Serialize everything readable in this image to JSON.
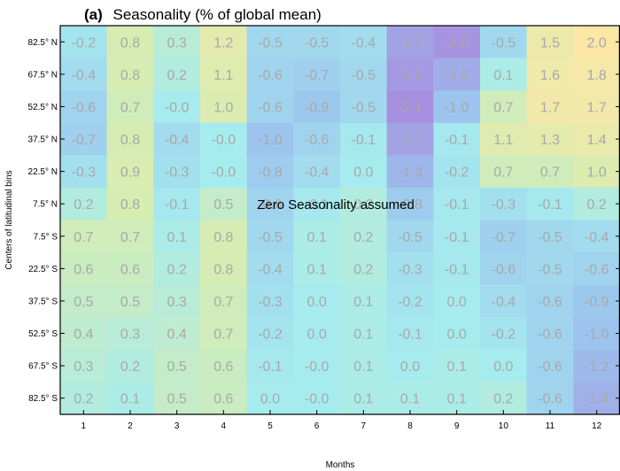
{
  "chart_data": {
    "type": "heatmap",
    "title_tag": "(a)",
    "title": "Seasonality (% of global mean)",
    "xlabel": "Months",
    "ylabel": "Centers of latitudinal bins",
    "annotation": "Zero Seasonality assumed",
    "x": [
      "1",
      "2",
      "3",
      "4",
      "5",
      "6",
      "7",
      "8",
      "9",
      "10",
      "11",
      "12"
    ],
    "y": [
      "82.5° N",
      "67.5° N",
      "52.5° N",
      "37.5° N",
      "22.5° N",
      "7.5° N",
      "7.5° S",
      "22.5° S",
      "37.5° S",
      "52.5° S",
      "67.5° S",
      "82.5° S"
    ],
    "values": [
      [
        -0.2,
        0.8,
        0.3,
        1.2,
        -0.5,
        -0.5,
        -0.4,
        -1.7,
        -2.0,
        -0.5,
        1.5,
        2.0
      ],
      [
        -0.4,
        0.8,
        0.2,
        1.1,
        -0.6,
        -0.7,
        -0.5,
        -1.9,
        -1.5,
        0.1,
        1.6,
        1.8
      ],
      [
        -0.6,
        0.7,
        -0.0,
        1.0,
        -0.6,
        -0.9,
        -0.5,
        -2.1,
        -1.0,
        0.7,
        1.7,
        1.7
      ],
      [
        -0.7,
        0.8,
        -0.4,
        -0.0,
        -1.0,
        -0.6,
        -0.1,
        -1.7,
        -0.1,
        1.1,
        1.3,
        1.4
      ],
      [
        -0.3,
        0.9,
        -0.3,
        -0.0,
        -0.8,
        -0.4,
        0.0,
        -1.3,
        -0.2,
        0.7,
        0.7,
        1.0
      ],
      [
        0.2,
        0.8,
        -0.1,
        0.5,
        -0.6,
        -0.1,
        0.2,
        -0.8,
        -0.1,
        -0.3,
        -0.1,
        0.2
      ],
      [
        0.7,
        0.7,
        0.1,
        0.8,
        -0.5,
        0.1,
        0.2,
        -0.5,
        -0.1,
        -0.7,
        -0.5,
        -0.4
      ],
      [
        0.6,
        0.6,
        0.2,
        0.8,
        -0.4,
        0.1,
        0.2,
        -0.3,
        -0.1,
        -0.6,
        -0.5,
        -0.6
      ],
      [
        0.5,
        0.5,
        0.3,
        0.7,
        -0.3,
        0.0,
        0.1,
        -0.2,
        0.0,
        -0.4,
        -0.6,
        -0.9
      ],
      [
        0.4,
        0.3,
        0.4,
        0.7,
        -0.2,
        0.0,
        0.1,
        -0.1,
        0.0,
        -0.2,
        -0.6,
        -1.0
      ],
      [
        0.3,
        0.2,
        0.5,
        0.6,
        -0.1,
        -0.0,
        0.1,
        0.0,
        0.1,
        0.0,
        -0.6,
        -1.2
      ],
      [
        0.2,
        0.1,
        0.5,
        0.6,
        0.0,
        -0.0,
        0.1,
        0.1,
        0.1,
        0.2,
        -0.6,
        -1.4
      ]
    ],
    "colormap": {
      "low": "#a78fe0",
      "mid_low": "#9cc4ee",
      "mid": "#a6ecee",
      "mid_high": "#d6ecb2",
      "high": "#fbe7a6"
    },
    "cell_text_color": "#a8a8a8",
    "annotation_color": "#000000"
  }
}
